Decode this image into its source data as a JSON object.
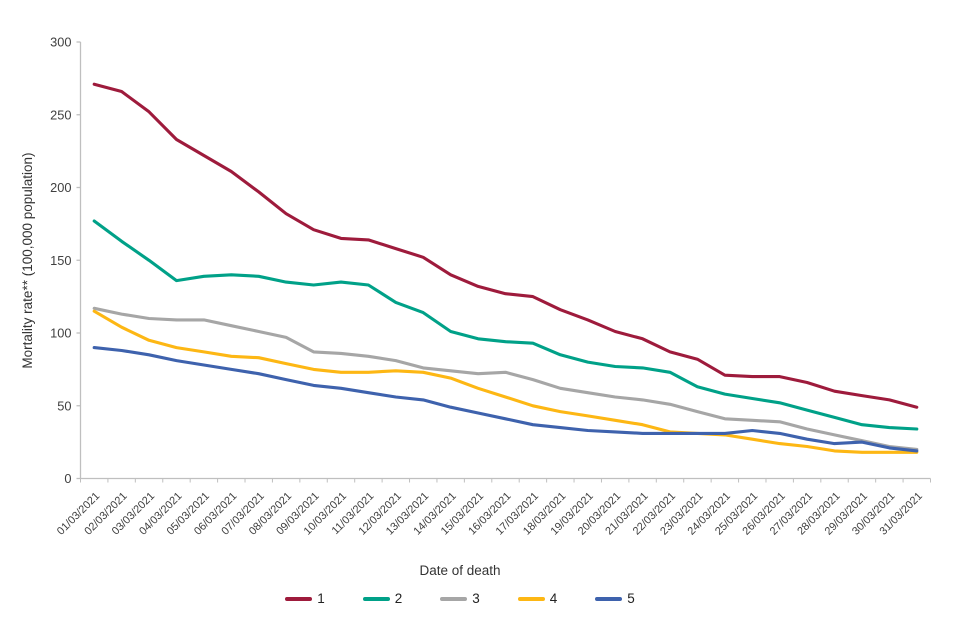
{
  "chart_data": {
    "type": "line",
    "title": "",
    "xlabel": "Date of death",
    "ylabel": "Mortality rate** (100,000 population)",
    "ylim": [
      0,
      300
    ],
    "yticks": [
      0,
      50,
      100,
      150,
      200,
      250,
      300
    ],
    "grid": false,
    "legend_position": "bottom",
    "categories": [
      "01/03/2021",
      "02/03/2021",
      "03/03/2021",
      "04/03/2021",
      "05/03/2021",
      "06/03/2021",
      "07/03/2021",
      "08/03/2021",
      "09/03/2021",
      "10/03/2021",
      "11/03/2021",
      "12/03/2021",
      "13/03/2021",
      "14/03/2021",
      "15/03/2021",
      "16/03/2021",
      "17/03/2021",
      "18/03/2021",
      "19/03/2021",
      "20/03/2021",
      "21/03/2021",
      "22/03/2021",
      "23/03/2021",
      "24/03/2021",
      "25/03/2021",
      "26/03/2021",
      "27/03/2021",
      "28/03/2021",
      "29/03/2021",
      "30/03/2021",
      "31/03/2021"
    ],
    "series": [
      {
        "name": "1",
        "color": "#9E1B3C",
        "values": [
          271,
          266,
          252,
          233,
          222,
          211,
          197,
          182,
          171,
          165,
          164,
          158,
          152,
          140,
          132,
          127,
          125,
          116,
          109,
          101,
          96,
          87,
          82,
          71,
          70,
          70,
          66,
          60,
          57,
          54,
          49
        ]
      },
      {
        "name": "2",
        "color": "#00A188",
        "values": [
          177,
          163,
          150,
          136,
          139,
          140,
          139,
          135,
          133,
          135,
          133,
          121,
          114,
          101,
          96,
          94,
          93,
          85,
          80,
          77,
          76,
          73,
          63,
          58,
          55,
          52,
          47,
          42,
          37,
          35,
          34
        ]
      },
      {
        "name": "3",
        "color": "#A6A6A6",
        "values": [
          117,
          113,
          110,
          109,
          109,
          105,
          101,
          97,
          87,
          86,
          84,
          81,
          76,
          74,
          72,
          73,
          68,
          62,
          59,
          56,
          54,
          51,
          46,
          41,
          40,
          39,
          34,
          30,
          26,
          22,
          20
        ]
      },
      {
        "name": "4",
        "color": "#FDB714",
        "values": [
          115,
          104,
          95,
          90,
          87,
          84,
          83,
          79,
          75,
          73,
          73,
          74,
          73,
          69,
          62,
          56,
          50,
          46,
          43,
          40,
          37,
          32,
          31,
          30,
          27,
          24,
          22,
          19,
          18,
          18,
          18
        ]
      },
      {
        "name": "5",
        "color": "#3E62AD",
        "values": [
          90,
          88,
          85,
          81,
          78,
          75,
          72,
          68,
          64,
          62,
          59,
          56,
          54,
          49,
          45,
          41,
          37,
          35,
          33,
          32,
          31,
          31,
          31,
          31,
          33,
          31,
          27,
          24,
          25,
          21,
          19
        ]
      }
    ]
  },
  "axis": {
    "line_color": "#BFBFBF",
    "tick_label_color": "#404040"
  }
}
